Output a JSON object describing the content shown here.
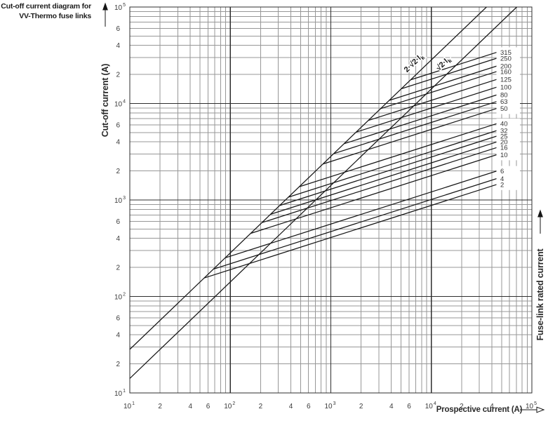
{
  "title": {
    "line1": "Cut-off current diagram for",
    "line2": "VV-Thermo fuse links"
  },
  "colors": {
    "background": "#ffffff",
    "ink": "#161616",
    "grid_major": "#2e2e2e",
    "grid_minor": "#979797",
    "tick_text": "#3a3a3a",
    "rating_text": "#333333"
  },
  "chart_data": {
    "type": "line",
    "scale": "log-log",
    "title": "Cut-off current diagram for VV-Thermo fuse links",
    "grid_minors": [
      2,
      3,
      4,
      5,
      6,
      7,
      8,
      9
    ],
    "x_axis": {
      "label": "Prospective current (A)",
      "min": 10,
      "max": 100000,
      "decade_exponents": [
        1,
        2,
        3,
        4,
        5
      ],
      "labeled_minors_per_decade": {
        "1": [
          2,
          4,
          6
        ],
        "2": [
          2,
          4,
          6
        ],
        "3": [
          2,
          4,
          6
        ],
        "4": [
          2,
          4
        ]
      }
    },
    "y_axis": {
      "label": "Cut-off current (A)",
      "min": 10,
      "max": 100000,
      "decade_exponents": [
        5,
        4,
        3,
        2,
        1
      ],
      "labeled_minors_per_decade": {
        "1": [
          2,
          4,
          6
        ],
        "2": [
          2,
          4,
          6
        ],
        "3": [
          2,
          4,
          6
        ],
        "4": [
          2,
          4,
          6
        ]
      }
    },
    "right_axis_label": "Fuse-link rated current",
    "reference_lines": [
      {
        "label": "2·√2·Ik",
        "label_prefix": "2·√2·I",
        "label_sub": "k",
        "cutoff_multiplier": 2.828
      },
      {
        "label": "√2·Ik",
        "label_prefix": "√2·I",
        "label_sub": "k",
        "cutoff_multiplier": 1.414
      }
    ],
    "fuse_curves_note": "Each fuse-link curve leaves the 2·√2·Ik peak-current line and continues with slope 1/3 (log-log) up to the rated-current label column",
    "curves_end_at_prospective_A": 45000,
    "limited_region_slope": 0.333,
    "series": [
      {
        "rating": "315",
        "cutoff_at_end_A": 34000
      },
      {
        "rating": "250",
        "cutoff_at_end_A": 29500
      },
      {
        "rating": "200",
        "cutoff_at_end_A": 24500
      },
      {
        "rating": "160",
        "cutoff_at_end_A": 21500
      },
      {
        "rating": "125",
        "cutoff_at_end_A": 17800
      },
      {
        "rating": "100",
        "cutoff_at_end_A": 14800
      },
      {
        "rating": "80",
        "cutoff_at_end_A": 12300
      },
      {
        "rating": "63",
        "cutoff_at_end_A": 10500
      },
      {
        "rating": "50",
        "cutoff_at_end_A": 8900
      },
      {
        "rating": "40",
        "cutoff_at_end_A": 6200
      },
      {
        "rating": "32",
        "cutoff_at_end_A": 5250
      },
      {
        "rating": "25",
        "cutoff_at_end_A": 4600
      },
      {
        "rating": "20",
        "cutoff_at_end_A": 4000
      },
      {
        "rating": "16",
        "cutoff_at_end_A": 3500
      },
      {
        "rating": "10",
        "cutoff_at_end_A": 2950
      },
      {
        "rating": "6",
        "cutoff_at_end_A": 2000
      },
      {
        "rating": "4",
        "cutoff_at_end_A": 1670
      },
      {
        "rating": "2",
        "cutoff_at_end_A": 1450
      }
    ],
    "rating_label_groups": [
      [
        0,
        1,
        2,
        3,
        4,
        5,
        6,
        7,
        8
      ],
      [
        9,
        10,
        11,
        12,
        13,
        14
      ],
      [
        15,
        16,
        17
      ]
    ]
  }
}
